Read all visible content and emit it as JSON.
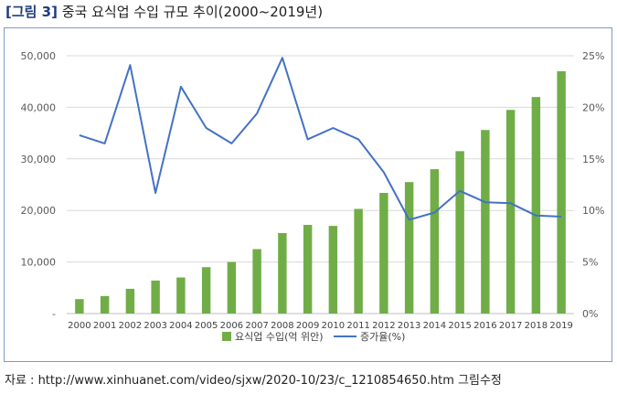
{
  "figure": {
    "title_tag": "[그림 3]",
    "title_text": "중국 요식업 수입 규모 추이(2000~2019년)",
    "source": "자료 : http://www.xinhuanet.com/video/sjxw/2020-10/23/c_1210854650.htm 그림수정"
  },
  "colors": {
    "bar": "#70ad47",
    "line": "#4472c4",
    "grid": "#d9d9d9",
    "border": "#7f99c4",
    "title_tag": "#1f3c7a"
  },
  "chart_data": {
    "type": "bar",
    "title": "",
    "categories": [
      "2000",
      "2001",
      "2002",
      "2003",
      "2004",
      "2005",
      "2006",
      "2007",
      "2008",
      "2009",
      "2010",
      "2011",
      "2012",
      "2013",
      "2014",
      "2015",
      "2016",
      "2017",
      "2018",
      "2019"
    ],
    "series": [
      {
        "name": "요식업 수입(억 위안)",
        "type": "bar",
        "axis": "left",
        "values": [
          2800,
          3400,
          4800,
          6400,
          7000,
          9000,
          10000,
          12500,
          15600,
          17200,
          17000,
          20300,
          23400,
          25500,
          28000,
          31500,
          35600,
          39500,
          42000,
          47000
        ]
      },
      {
        "name": "증가율(%)",
        "type": "line",
        "axis": "right",
        "values": [
          17.3,
          16.5,
          24.1,
          11.7,
          22.0,
          18.0,
          16.5,
          19.4,
          24.8,
          16.9,
          18.0,
          16.9,
          13.7,
          9.1,
          9.8,
          11.9,
          10.8,
          10.7,
          9.5,
          9.4
        ]
      }
    ],
    "y_left": {
      "ylim": [
        0,
        50000
      ],
      "ticks": [
        "-",
        "10,000",
        "20,000",
        "30,000",
        "40,000",
        "50,000"
      ],
      "tick_values": [
        0,
        10000,
        20000,
        30000,
        40000,
        50000
      ]
    },
    "y_right": {
      "ylim": [
        0,
        25
      ],
      "ticks": [
        "0%",
        "5%",
        "10%",
        "15%",
        "20%",
        "25%"
      ],
      "tick_values": [
        0,
        5,
        10,
        15,
        20,
        25
      ]
    },
    "grid": true,
    "legend_position": "bottom"
  }
}
